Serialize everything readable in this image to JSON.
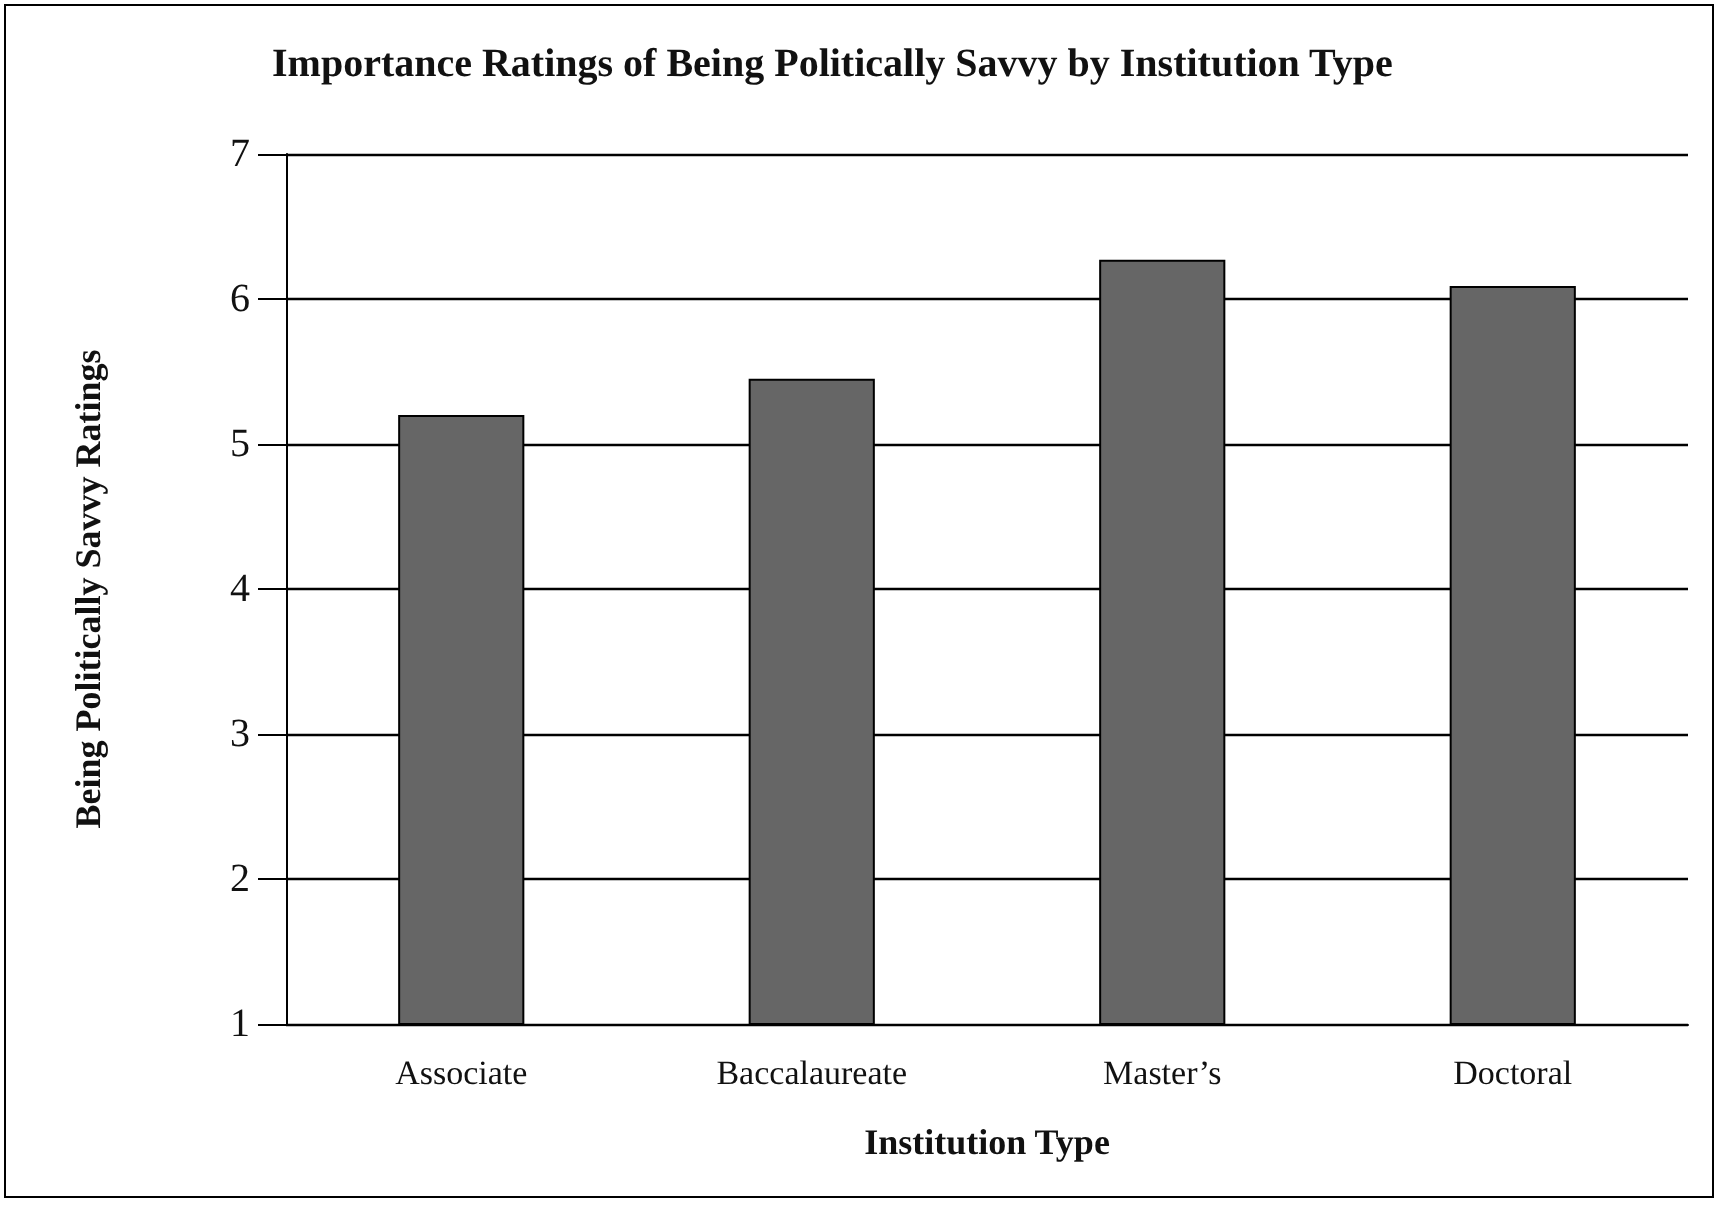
{
  "chart_data": {
    "type": "bar",
    "title": "Importance Ratings of Being Politically Savvy by Institution Type",
    "xlabel": "Institution Type",
    "ylabel": "Being Politically Savvy Ratings",
    "categories": [
      "Associate",
      "Baccalaureate",
      "Master’s",
      "Doctoral"
    ],
    "values": [
      5.2,
      5.45,
      6.27,
      6.09
    ],
    "color": "#666666",
    "ylim": [
      1,
      7
    ],
    "yticks": [
      1,
      2,
      3,
      4,
      5,
      6,
      7
    ],
    "grid": "y"
  }
}
